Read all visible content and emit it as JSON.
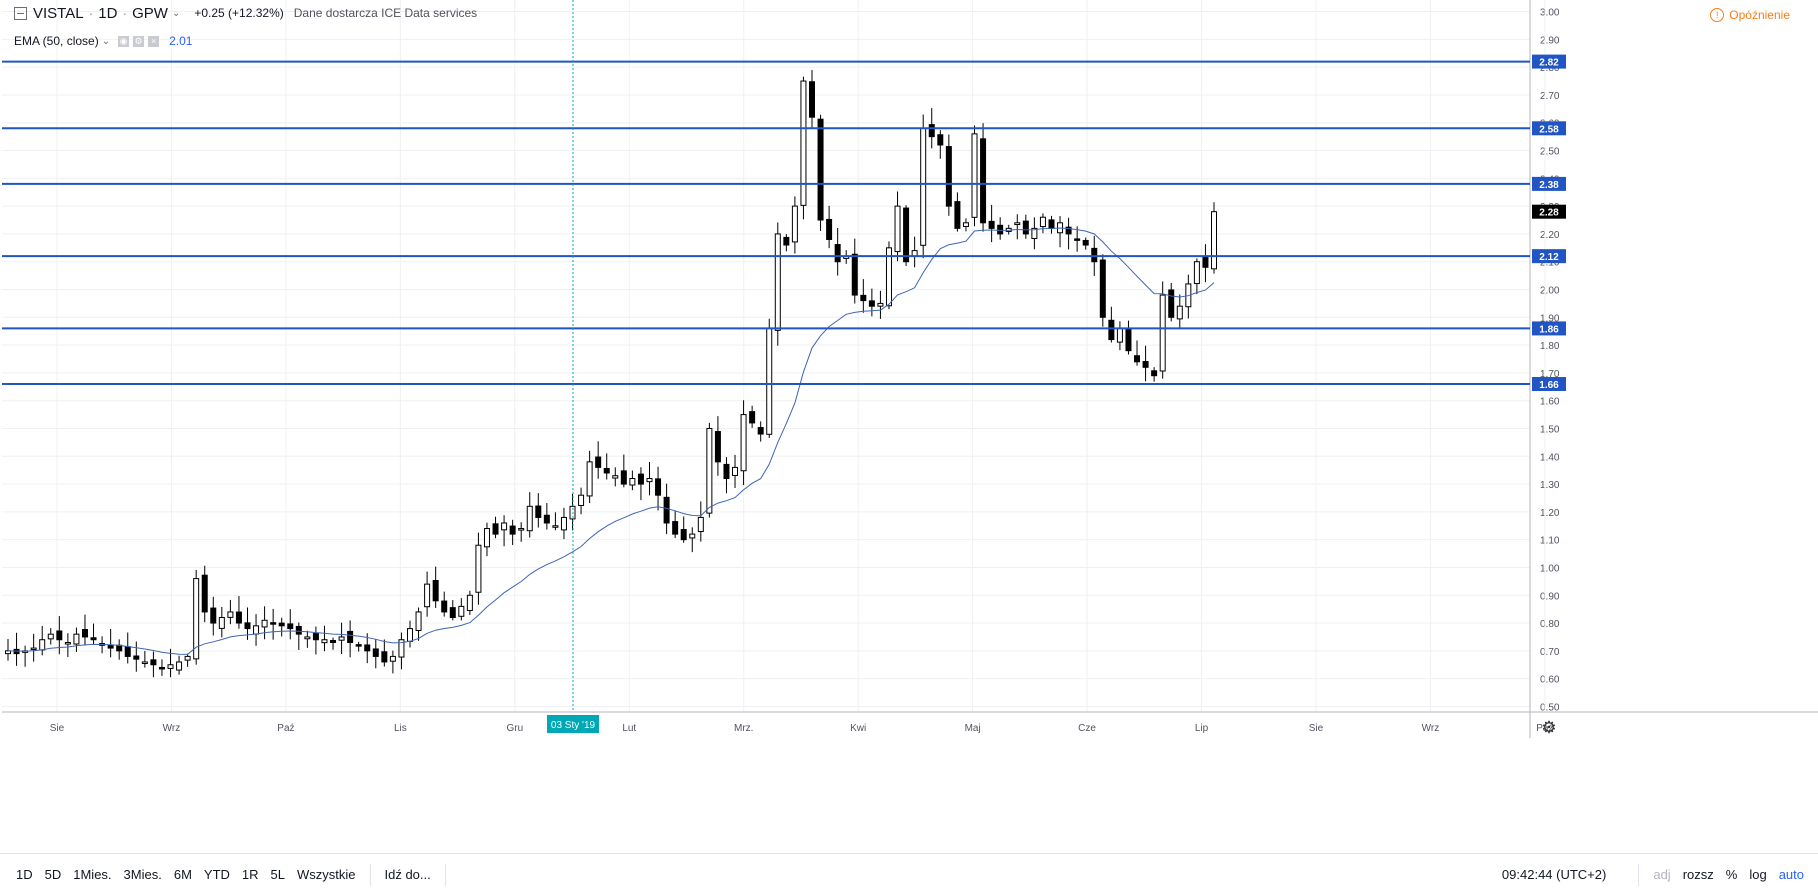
{
  "header": {
    "symbol": "VISTAL",
    "interval": "1D",
    "exchange": "GPW",
    "change": "+0.25 (+12.32%)",
    "source": "Dane dostarcza ICE Data services",
    "delay_label": "Opóźnienie"
  },
  "indicator": {
    "label": "EMA (50, close)",
    "value": "2.01"
  },
  "cursor": {
    "date_label": "03 Sty '19"
  },
  "toolbar": {
    "ranges": [
      "1D",
      "5D",
      "1Mies.",
      "3Mies.",
      "6M",
      "YTD",
      "1R",
      "5L",
      "Wszystkie"
    ],
    "goto": "Idź do...",
    "time": "09:42:44 (UTC+2)",
    "adj": "adj",
    "scale": "rozsz",
    "percent": "%",
    "log": "log",
    "auto": "auto"
  },
  "colors": {
    "level_line": "#2155c4",
    "ema_line": "#3e65b5",
    "cursor_line": "#00a8b5",
    "candle_up": "#ffffff",
    "candle_down": "#000000"
  },
  "chart_data": {
    "type": "candlestick",
    "x_ticks": [
      "Sie",
      "Wrz",
      "Paź",
      "Lis",
      "Gru",
      "Lut",
      "Mrz.",
      "Kwi",
      "Maj",
      "Cze",
      "Lip",
      "Sie",
      "Wrz",
      "Paź"
    ],
    "y_ticks": [
      "0.50",
      "0.60",
      "0.70",
      "0.80",
      "0.90",
      "1.00",
      "1.10",
      "1.20",
      "1.30",
      "1.40",
      "1.50",
      "1.60",
      "1.70",
      "1.80",
      "1.90",
      "2.00",
      "2.10",
      "2.20",
      "2.30",
      "2.40",
      "2.50",
      "2.60",
      "2.70",
      "2.80",
      "2.90",
      "3.00"
    ],
    "ylim": [
      0.48,
      3.02
    ],
    "horizontal_levels": [
      2.82,
      2.58,
      2.38,
      2.12,
      1.86,
      1.66
    ],
    "last_price": 2.28,
    "ema_period": 50,
    "price_path": [
      0.7,
      0.69,
      0.7,
      0.71,
      0.74,
      0.76,
      0.74,
      0.73,
      0.76,
      0.75,
      0.74,
      0.72,
      0.71,
      0.7,
      0.68,
      0.67,
      0.66,
      0.65,
      0.64,
      0.65,
      0.66,
      0.68,
      0.96,
      0.84,
      0.8,
      0.82,
      0.84,
      0.8,
      0.78,
      0.79,
      0.81,
      0.8,
      0.79,
      0.78,
      0.76,
      0.75,
      0.74,
      0.74,
      0.73,
      0.75,
      0.73,
      0.72,
      0.7,
      0.68,
      0.66,
      0.68,
      0.74,
      0.78,
      0.84,
      0.94,
      0.88,
      0.84,
      0.82,
      0.86,
      0.9,
      1.08,
      1.14,
      1.12,
      1.16,
      1.12,
      1.14,
      1.22,
      1.18,
      1.16,
      1.15,
      1.18,
      1.22,
      1.26,
      1.38,
      1.36,
      1.34,
      1.33,
      1.3,
      1.32,
      1.3,
      1.32,
      1.26,
      1.16,
      1.12,
      1.1,
      1.12,
      1.18,
      1.5,
      1.38,
      1.32,
      1.36,
      1.55,
      1.52,
      1.48,
      1.86,
      2.2,
      2.16,
      2.3,
      2.75,
      2.62,
      2.25,
      2.18,
      2.1,
      2.12,
      1.98,
      1.96,
      1.94,
      1.95,
      2.15,
      2.3,
      2.1,
      2.14,
      2.58,
      2.55,
      2.52,
      2.3,
      2.22,
      2.24,
      2.56,
      2.24,
      2.22,
      2.2,
      2.22,
      2.24,
      2.2,
      2.22,
      2.26,
      2.22,
      2.24,
      2.2,
      2.18,
      2.16,
      2.1,
      1.9,
      1.82,
      1.86,
      1.78,
      1.74,
      1.72,
      1.69,
      1.98,
      1.9,
      1.94,
      2.02,
      2.1,
      2.08,
      2.28
    ]
  }
}
